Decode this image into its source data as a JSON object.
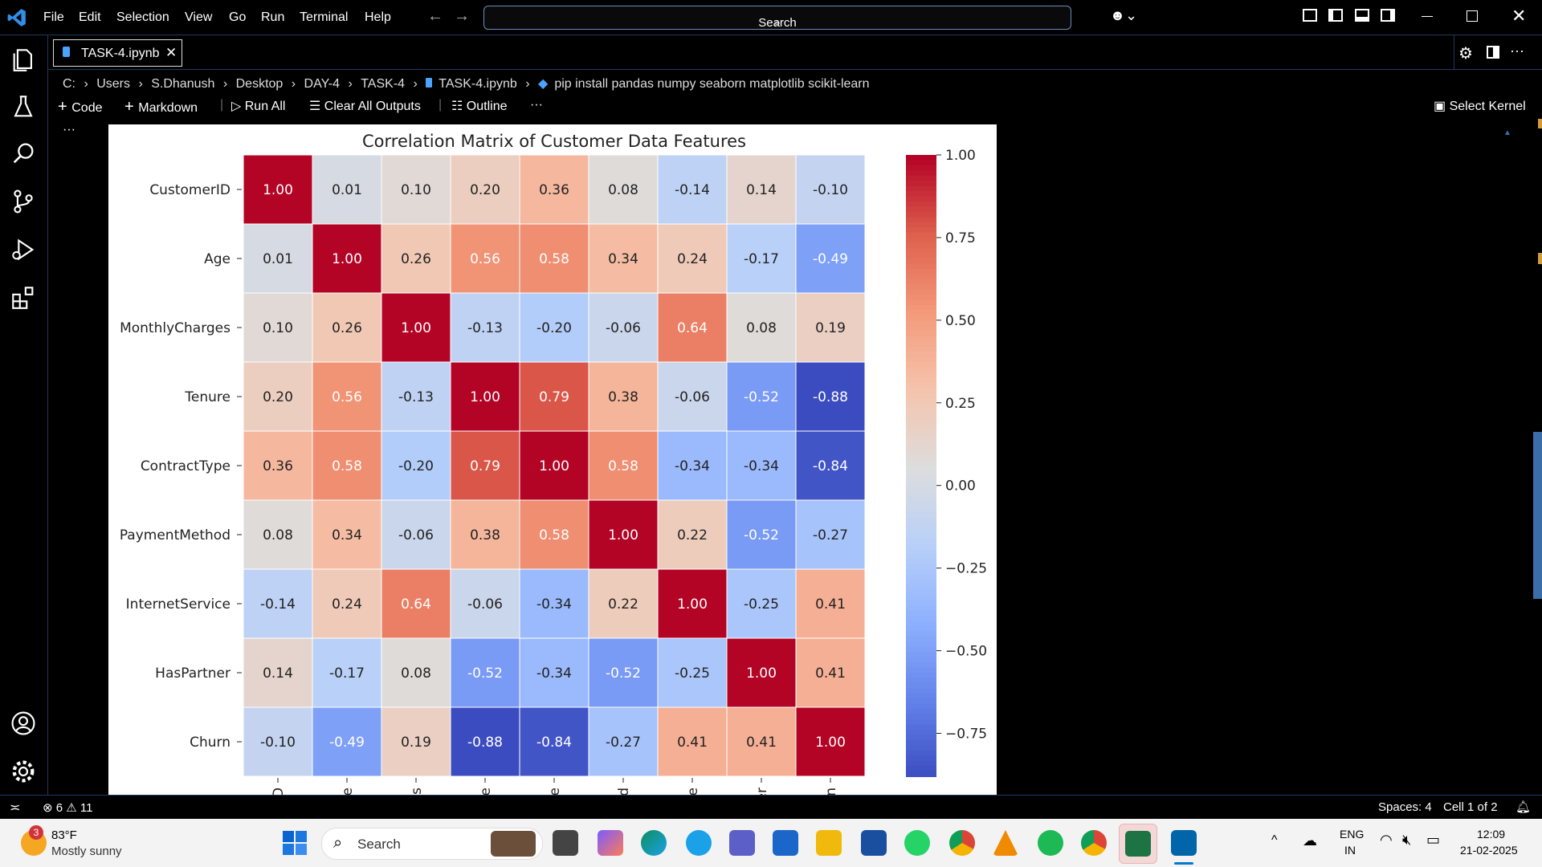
{
  "menu": [
    "File",
    "Edit",
    "Selection",
    "View",
    "Go",
    "Run",
    "Terminal",
    "Help"
  ],
  "search": {
    "label": "Search"
  },
  "tab": {
    "label": "TASK-4.ipynb"
  },
  "breadcrumb": [
    "C:",
    "Users",
    "S.Dhanush",
    "Desktop",
    "DAY-4",
    "TASK-4",
    "TASK-4.ipynb",
    "pip install pandas numpy seaborn matplotlib scikit-learn"
  ],
  "toolbar": {
    "code": "Code",
    "markdown": "Markdown",
    "run_all": "Run All",
    "clear_outputs": "Clear All Outputs",
    "outline": "Outline",
    "more": "···",
    "select_kernel": "Select Kernel"
  },
  "cell_more": "···",
  "chart_data": {
    "type": "heatmap",
    "title": "Correlation Matrix of Customer Data Features",
    "rows": [
      "CustomerID",
      "Age",
      "MonthlyCharges",
      "Tenure",
      "ContractType",
      "PaymentMethod",
      "InternetService",
      "HasPartner",
      "Churn"
    ],
    "col_tick_fragments": [
      "D",
      "ge",
      "es",
      "re",
      "pe",
      "od",
      "ce",
      "er",
      "rn"
    ],
    "values": [
      [
        1.0,
        0.01,
        0.1,
        0.2,
        0.36,
        0.08,
        -0.14,
        0.14,
        -0.1
      ],
      [
        0.01,
        1.0,
        0.26,
        0.56,
        0.58,
        0.34,
        0.24,
        -0.17,
        -0.49
      ],
      [
        0.1,
        0.26,
        1.0,
        -0.13,
        -0.2,
        -0.06,
        0.64,
        0.08,
        0.19
      ],
      [
        0.2,
        0.56,
        -0.13,
        1.0,
        0.79,
        0.38,
        -0.06,
        -0.52,
        -0.88
      ],
      [
        0.36,
        0.58,
        -0.2,
        0.79,
        1.0,
        0.58,
        -0.34,
        -0.34,
        -0.84
      ],
      [
        0.08,
        0.34,
        -0.06,
        0.38,
        0.58,
        1.0,
        0.22,
        -0.52,
        -0.27
      ],
      [
        -0.14,
        0.24,
        0.64,
        -0.06,
        -0.34,
        0.22,
        1.0,
        -0.25,
        0.41
      ],
      [
        0.14,
        -0.17,
        0.08,
        -0.52,
        -0.34,
        -0.52,
        -0.25,
        1.0,
        0.41
      ],
      [
        -0.1,
        -0.49,
        0.19,
        -0.88,
        -0.84,
        -0.27,
        0.41,
        0.41,
        1.0
      ]
    ],
    "colormap": "coolwarm",
    "vmin": -0.88,
    "vmax": 1.0,
    "colorbar_ticks": [
      "1.00",
      "0.75",
      "0.50",
      "0.25",
      "0.00",
      "−0.25",
      "−0.50",
      "−0.75"
    ],
    "colorbar_tick_values": [
      1.0,
      0.75,
      0.5,
      0.25,
      0.0,
      -0.25,
      -0.5,
      -0.75
    ]
  },
  "status": {
    "errors": "6",
    "warnings": "11",
    "spaces": "Spaces: 4",
    "cell": "Cell 1 of 2"
  },
  "taskbar": {
    "weather_temp": "83°F",
    "weather_desc": "Mostly sunny",
    "weather_badge": "3",
    "search": "Search",
    "lang1": "ENG",
    "lang2": "IN",
    "time": "12:09",
    "date": "21-02-2025"
  },
  "colors": {
    "accent": "#0078d4",
    "border": "#1e3a5f",
    "vscode_blue": "#0065a9"
  }
}
